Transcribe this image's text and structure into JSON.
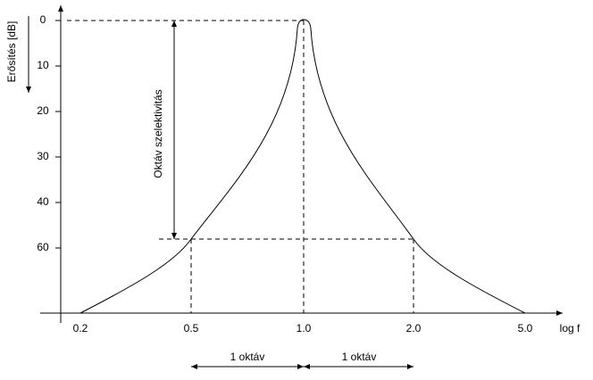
{
  "y_axis": {
    "label": "Erősítés [dB]",
    "ticks": [
      "0",
      "10",
      "20",
      "30",
      "40",
      "60"
    ]
  },
  "x_axis": {
    "label": "log f",
    "ticks": [
      "0.2",
      "0.5",
      "1.0",
      "2.0",
      "5.0"
    ]
  },
  "annotations": {
    "selectivity": "Oktáv szelektivitás",
    "octaves": [
      "1 oktáv",
      "1 oktáv"
    ]
  }
}
